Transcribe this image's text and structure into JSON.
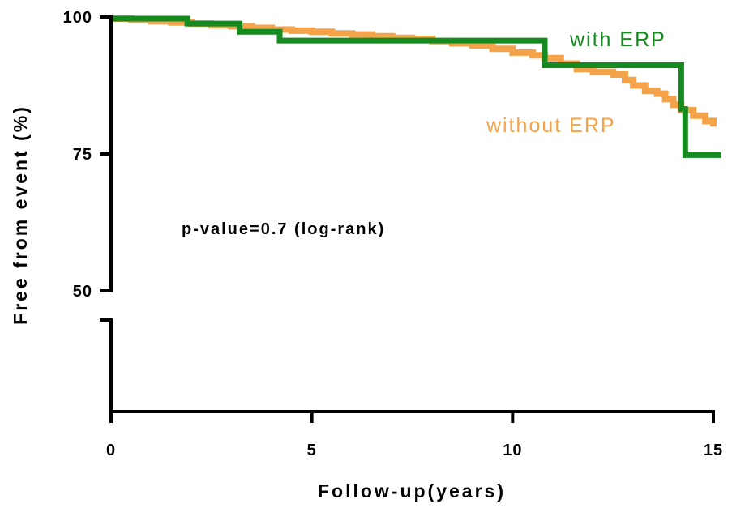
{
  "chart_data": {
    "type": "line",
    "title": "",
    "xlabel": "Follow-up(years)",
    "ylabel": "Free from event (%)",
    "xlim": [
      0,
      15
    ],
    "ylim": [
      50,
      100
    ],
    "y_axis_break_below": 50,
    "x_ticks": [
      0,
      5,
      10,
      15
    ],
    "x_tick_labels": [
      "0",
      "5",
      "10",
      "15"
    ],
    "y_ticks": [
      100,
      75,
      50
    ],
    "y_tick_labels": [
      "100",
      "75",
      "50"
    ],
    "grid": false,
    "annotation": "p-value=0.7 (log-rank)",
    "series": [
      {
        "name": "without ERP",
        "color": "#F5A34A",
        "step": true,
        "x": [
          0,
          0.5,
          1.0,
          1.5,
          2.0,
          2.5,
          3.0,
          3.5,
          4.0,
          4.5,
          5.0,
          5.5,
          6.0,
          6.5,
          7.0,
          7.5,
          8.0,
          8.5,
          9.0,
          9.5,
          10.0,
          10.5,
          10.8,
          11.2,
          11.6,
          12.0,
          12.5,
          12.8,
          13.0,
          13.3,
          13.6,
          13.8,
          14.0,
          14.2,
          14.5,
          14.8,
          15.0
        ],
        "y": [
          99.7,
          99.5,
          99.2,
          99.0,
          98.8,
          98.5,
          98.3,
          98.0,
          97.7,
          97.5,
          97.3,
          97.0,
          96.8,
          96.5,
          96.2,
          96.0,
          95.6,
          95.2,
          94.8,
          94.2,
          93.5,
          93.0,
          92.5,
          91.5,
          90.5,
          90.0,
          89.5,
          88.5,
          87.5,
          86.5,
          86.0,
          85.0,
          84.0,
          83.0,
          82.0,
          81.0,
          80.0
        ]
      },
      {
        "name": "with ERP",
        "color": "#158A1E",
        "step": true,
        "x": [
          0,
          1.9,
          3.2,
          4.2,
          10.8,
          14.2,
          14.3,
          15.2
        ],
        "y": [
          99.7,
          98.8,
          97.3,
          95.7,
          91.2,
          83.2,
          74.8,
          74.8
        ]
      }
    ]
  }
}
